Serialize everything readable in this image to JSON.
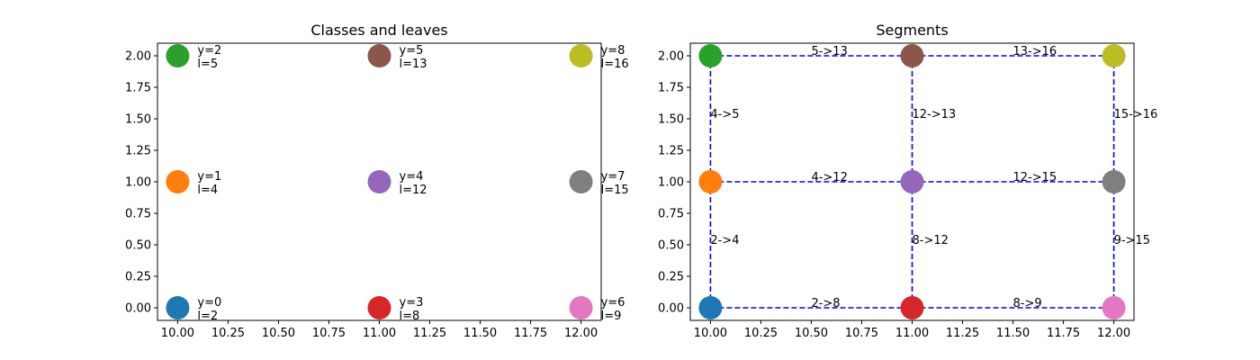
{
  "chart_data": [
    {
      "type": "scatter",
      "title": "Classes and leaves",
      "xlabel": "",
      "ylabel": "",
      "xlim": [
        9.9,
        12.1
      ],
      "ylim": [
        -0.1,
        2.1
      ],
      "xticks": [
        "10.00",
        "10.25",
        "10.50",
        "10.75",
        "11.00",
        "11.25",
        "11.50",
        "11.75",
        "12.00"
      ],
      "yticks": [
        "0.00",
        "0.25",
        "0.50",
        "0.75",
        "1.00",
        "1.25",
        "1.50",
        "1.75",
        "2.00"
      ],
      "grid": false,
      "points": [
        {
          "x": 10,
          "y": 0,
          "color": "#1f77b4",
          "label_y": "y=0",
          "label_l": "l=2"
        },
        {
          "x": 10,
          "y": 1,
          "color": "#ff7f0e",
          "label_y": "y=1",
          "label_l": "l=4"
        },
        {
          "x": 10,
          "y": 2,
          "color": "#2ca02c",
          "label_y": "y=2",
          "label_l": "l=5"
        },
        {
          "x": 11,
          "y": 0,
          "color": "#d62728",
          "label_y": "y=3",
          "label_l": "l=8"
        },
        {
          "x": 11,
          "y": 1,
          "color": "#9467bd",
          "label_y": "y=4",
          "label_l": "l=12"
        },
        {
          "x": 11,
          "y": 2,
          "color": "#8c564b",
          "label_y": "y=5",
          "label_l": "l=13"
        },
        {
          "x": 12,
          "y": 0,
          "color": "#e377c2",
          "label_y": "y=6",
          "label_l": "l=9"
        },
        {
          "x": 12,
          "y": 1,
          "color": "#7f7f7f",
          "label_y": "y=7",
          "label_l": "l=15"
        },
        {
          "x": 12,
          "y": 2,
          "color": "#bcbd22",
          "label_y": "y=8",
          "label_l": "l=16"
        }
      ]
    },
    {
      "type": "scatter",
      "title": "Segments",
      "xlabel": "",
      "ylabel": "",
      "xlim": [
        9.9,
        12.1
      ],
      "ylim": [
        -0.1,
        2.1
      ],
      "xticks": [
        "10.00",
        "10.25",
        "10.50",
        "10.75",
        "11.00",
        "11.25",
        "11.50",
        "11.75",
        "12.00"
      ],
      "yticks": [
        "0.00",
        "0.25",
        "0.50",
        "0.75",
        "1.00",
        "1.25",
        "1.50",
        "1.75",
        "2.00"
      ],
      "grid": false,
      "segment_color": "#0000ff",
      "points": [
        {
          "x": 10,
          "y": 0,
          "color": "#1f77b4"
        },
        {
          "x": 10,
          "y": 1,
          "color": "#ff7f0e"
        },
        {
          "x": 10,
          "y": 2,
          "color": "#2ca02c"
        },
        {
          "x": 11,
          "y": 0,
          "color": "#d62728"
        },
        {
          "x": 11,
          "y": 1,
          "color": "#9467bd"
        },
        {
          "x": 11,
          "y": 2,
          "color": "#8c564b"
        },
        {
          "x": 12,
          "y": 0,
          "color": "#e377c2"
        },
        {
          "x": 12,
          "y": 1,
          "color": "#7f7f7f"
        },
        {
          "x": 12,
          "y": 2,
          "color": "#bcbd22"
        }
      ],
      "segments": [
        {
          "from": [
            10,
            0
          ],
          "to": [
            11,
            0
          ],
          "label": "2->8"
        },
        {
          "from": [
            11,
            0
          ],
          "to": [
            12,
            0
          ],
          "label": "8->9"
        },
        {
          "from": [
            10,
            1
          ],
          "to": [
            11,
            1
          ],
          "label": "4->12"
        },
        {
          "from": [
            11,
            1
          ],
          "to": [
            12,
            1
          ],
          "label": "12->15"
        },
        {
          "from": [
            10,
            2
          ],
          "to": [
            11,
            2
          ],
          "label": "5->13"
        },
        {
          "from": [
            11,
            2
          ],
          "to": [
            12,
            2
          ],
          "label": "13->16"
        },
        {
          "from": [
            10,
            0
          ],
          "to": [
            10,
            1
          ],
          "label": "2->4"
        },
        {
          "from": [
            10,
            1
          ],
          "to": [
            10,
            2
          ],
          "label": "4->5"
        },
        {
          "from": [
            11,
            0
          ],
          "to": [
            11,
            1
          ],
          "label": "8->12"
        },
        {
          "from": [
            11,
            1
          ],
          "to": [
            11,
            2
          ],
          "label": "12->13"
        },
        {
          "from": [
            12,
            0
          ],
          "to": [
            12,
            1
          ],
          "label": "9->15"
        },
        {
          "from": [
            12,
            1
          ],
          "to": [
            12,
            2
          ],
          "label": "15->16"
        }
      ]
    }
  ]
}
